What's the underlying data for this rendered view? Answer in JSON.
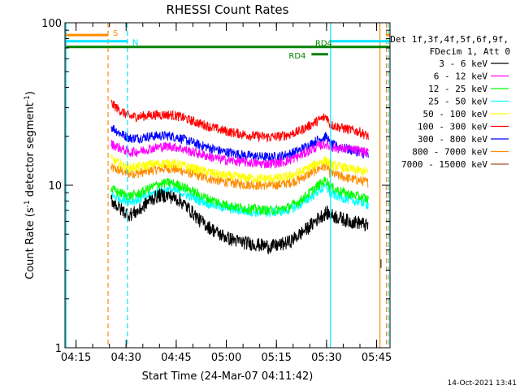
{
  "chart_data": {
    "type": "line",
    "title": "RHESSI Count Rates",
    "xlabel": "Start Time (24-Mar-07 04:11:42)",
    "ylabel": "Count Rate (s",
    "ylabel_sup": "-1",
    "ylabel_tail": " detector segment",
    "ylabel_sup2": "-1",
    "ylabel_close": ")",
    "yscale": "log",
    "xlim": [
      11.7,
      109.0
    ],
    "ylim": [
      1,
      100
    ],
    "x_unit": "minutes after 04:00",
    "xticks": [
      {
        "value": 15,
        "label": "04:15"
      },
      {
        "value": 30,
        "label": "04:30"
      },
      {
        "value": 45,
        "label": "04:45"
      },
      {
        "value": 60,
        "label": "05:00"
      },
      {
        "value": 75,
        "label": "05:15"
      },
      {
        "value": 90,
        "label": "05:30"
      },
      {
        "value": 105,
        "label": "05:45"
      }
    ],
    "yticks": [
      {
        "value": 1,
        "label": "1"
      },
      {
        "value": 10,
        "label": "10"
      },
      {
        "value": 100,
        "label": "100"
      }
    ],
    "legend_header": [
      "Det 1f,3f,4f,5f,6f,9f,",
      "FDecim 1, Att 0"
    ],
    "legend_position": "right",
    "x_sample": [
      25.5,
      28,
      31,
      34,
      37,
      40,
      43,
      46,
      49,
      52,
      55,
      58,
      61,
      64,
      67,
      70,
      73,
      76,
      79,
      82,
      85,
      88,
      90,
      91,
      94,
      97,
      100,
      102.5
    ],
    "series": [
      {
        "name": "3 - 6 keV",
        "color": "#000000",
        "values": [
          8.2,
          7.2,
          6.6,
          7.0,
          8.1,
          8.7,
          8.6,
          8.1,
          7.1,
          6.1,
          5.5,
          5.0,
          4.7,
          4.5,
          4.4,
          4.3,
          4.2,
          4.3,
          4.5,
          5.0,
          5.6,
          6.4,
          6.8,
          6.6,
          6.3,
          6.0,
          5.9,
          5.6
        ]
      },
      {
        "name": "6 - 12 keV",
        "color": "#ff00ff",
        "values": [
          18.0,
          17.0,
          16.0,
          16.2,
          16.8,
          17.2,
          17.4,
          17.0,
          16.2,
          15.6,
          15.0,
          14.5,
          14.2,
          14.0,
          13.8,
          13.6,
          13.6,
          13.8,
          14.3,
          15.2,
          16.4,
          17.6,
          18.0,
          17.2,
          16.9,
          16.6,
          16.3,
          15.8
        ]
      },
      {
        "name": "12 - 25 keV",
        "color": "#00ff00",
        "values": [
          9.5,
          9.0,
          8.6,
          8.9,
          9.6,
          10.2,
          10.4,
          10.0,
          9.4,
          8.7,
          8.2,
          7.8,
          7.5,
          7.3,
          7.2,
          7.1,
          7.0,
          7.1,
          7.4,
          8.0,
          9.0,
          10.2,
          10.8,
          9.8,
          9.2,
          8.8,
          8.5,
          8.2
        ]
      },
      {
        "name": "25 - 50 keV",
        "color": "#00ffff",
        "values": [
          8.7,
          8.3,
          8.0,
          8.2,
          8.7,
          9.2,
          9.4,
          9.1,
          8.6,
          8.1,
          7.7,
          7.4,
          7.2,
          7.0,
          6.9,
          6.8,
          6.8,
          6.9,
          7.1,
          7.6,
          8.4,
          9.4,
          9.8,
          8.9,
          8.5,
          8.1,
          7.9,
          7.6
        ]
      },
      {
        "name": "50 - 100 keV",
        "color": "#ffff00",
        "values": [
          14.5,
          13.5,
          12.8,
          13.0,
          13.4,
          13.6,
          13.7,
          13.4,
          12.9,
          12.4,
          12.0,
          11.6,
          11.4,
          11.2,
          11.1,
          11.0,
          11.0,
          11.1,
          11.4,
          12.0,
          12.9,
          13.9,
          14.3,
          13.4,
          13.0,
          12.6,
          12.3,
          12.0
        ]
      },
      {
        "name": "100 - 300 keV",
        "color": "#ff0000",
        "values": [
          32.0,
          29.0,
          26.5,
          26.5,
          27.0,
          27.2,
          27.2,
          26.5,
          25.2,
          24.0,
          23.0,
          22.0,
          21.3,
          20.8,
          20.3,
          20.0,
          19.8,
          20.0,
          20.6,
          21.6,
          23.4,
          25.4,
          26.5,
          23.8,
          22.7,
          22.0,
          21.3,
          20.0
        ]
      },
      {
        "name": "300 - 800 keV",
        "color": "#0000ff",
        "values": [
          23.0,
          21.0,
          19.5,
          19.6,
          20.0,
          20.2,
          20.2,
          19.6,
          18.6,
          17.7,
          17.0,
          16.3,
          15.9,
          15.5,
          15.2,
          15.0,
          14.9,
          15.1,
          15.6,
          16.5,
          17.8,
          19.3,
          20.0,
          17.9,
          17.2,
          16.6,
          16.0,
          15.2
        ]
      },
      {
        "name": "800 - 7000 keV",
        "color": "#ff8c00",
        "values": [
          12.8,
          12.3,
          11.8,
          11.9,
          12.3,
          12.6,
          12.7,
          12.4,
          11.9,
          11.4,
          11.0,
          10.6,
          10.4,
          10.2,
          10.1,
          10.0,
          10.0,
          10.1,
          10.4,
          10.9,
          11.8,
          12.8,
          13.2,
          11.9,
          11.4,
          11.0,
          10.7,
          10.4
        ]
      },
      {
        "name": "7000 - 15000 keV",
        "color": "#a0522d",
        "values": [
          null,
          null,
          null,
          null,
          null,
          null,
          null,
          null,
          null,
          null,
          null,
          null,
          null,
          null,
          null,
          null,
          null,
          null,
          null,
          null,
          null,
          null,
          null,
          null,
          null,
          null,
          null,
          null
        ]
      }
    ],
    "vertical_lines": [
      {
        "x": 12.0,
        "color": "#00e5ff",
        "dashed": false
      },
      {
        "x": 24.6,
        "color": "#ff8c00",
        "dashed": true
      },
      {
        "x": 30.4,
        "color": "#00e5ff",
        "dashed": true
      },
      {
        "x": 91.2,
        "color": "#00e5ff",
        "dashed": false
      },
      {
        "x": 106.0,
        "color": "#ff8c00",
        "dashed": false
      },
      {
        "x": 107.9,
        "color": "#ff8c00",
        "dashed": true
      },
      {
        "x": 108.5,
        "color": "#00e5ff",
        "dashed": true
      }
    ],
    "flags": [
      {
        "label": "S",
        "color": "#ff8c00",
        "x0": 12.0,
        "x1": 24.6,
        "y": 84
      },
      {
        "label": "N",
        "color": "#00e5ff",
        "x0": 12.0,
        "x1": 30.4,
        "y": 77
      },
      {
        "label": "RD4",
        "color": "#008000",
        "x0": 12.0,
        "x1": 109.0,
        "y": 71
      },
      {
        "label": "RD4",
        "color": "#008000",
        "x0": 85.5,
        "x1": 90.5,
        "y": 64
      }
    ],
    "flags_right": [
      {
        "color": "#00e5ff",
        "x0": 91.2,
        "x1": 109.0,
        "y": 77
      },
      {
        "color": "#ff8c00",
        "x0": 107.9,
        "x1": 109.0,
        "y": 84
      }
    ],
    "timestamp": "14-Oct-2021 13:41"
  }
}
